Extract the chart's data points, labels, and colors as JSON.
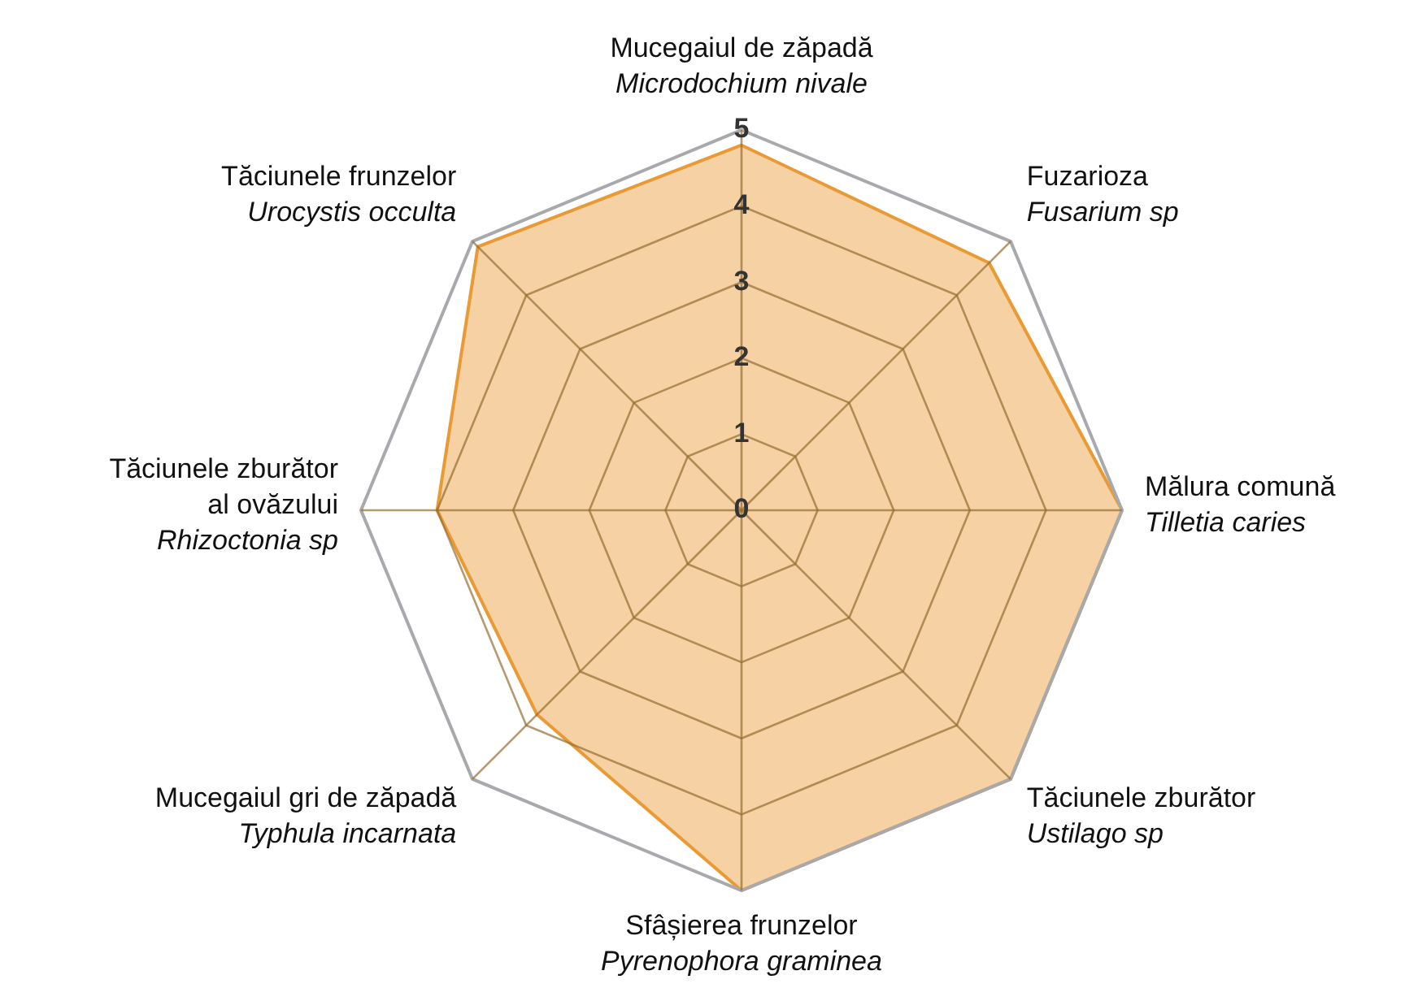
{
  "chart_data": {
    "type": "radar",
    "categories": [
      "Mucegaiul de zăpadă\nMicrodochium nivale",
      "Fuzarioza\nFusarium sp",
      "Mălura comună\nTilletia caries",
      "Tăciunele zburător\nUstilago sp",
      "Sfâșierea frunzelor\nPyrenophora graminea",
      "Mucegaiul gri de zăpadă\nTyphula incarnata",
      "Tăciunele zburător\nal ovăzului\nRhizoctonia sp",
      "Tăciunele frunzelor\nUrocystis occulta"
    ],
    "series": [
      {
        "color": "#e99a34",
        "values": [
          4.8,
          4.6,
          5,
          5,
          5,
          3.8,
          4,
          4.9
        ]
      }
    ],
    "ylim": [
      0,
      5
    ],
    "yticks": [
      0,
      1,
      2,
      3,
      4,
      5
    ],
    "grid": true,
    "legend": false,
    "marker": "none"
  }
}
